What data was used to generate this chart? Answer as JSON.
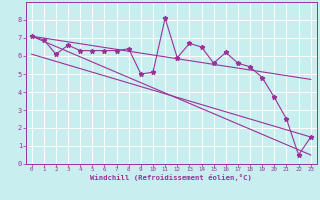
{
  "title": "",
  "xlabel": "Windchill (Refroidissement éolien,°C)",
  "ylabel": "",
  "xlim": [
    -0.5,
    23.5
  ],
  "ylim": [
    0,
    9
  ],
  "xticks": [
    0,
    1,
    2,
    3,
    4,
    5,
    6,
    7,
    8,
    9,
    10,
    11,
    12,
    13,
    14,
    15,
    16,
    17,
    18,
    19,
    20,
    21,
    22,
    23
  ],
  "yticks": [
    0,
    1,
    2,
    3,
    4,
    5,
    6,
    7,
    8
  ],
  "background_color": "#c8eef0",
  "line_color": "#993399",
  "grid_color": "#ffffff",
  "series1": {
    "x": [
      0,
      1,
      2,
      3,
      4,
      5,
      6,
      7,
      8,
      9,
      10,
      11,
      12,
      13,
      14,
      15,
      16,
      17,
      18,
      19,
      20,
      21,
      22,
      23
    ],
    "y": [
      7.1,
      6.9,
      6.1,
      6.6,
      6.3,
      6.3,
      6.3,
      6.3,
      6.4,
      5.0,
      5.1,
      8.1,
      5.9,
      6.7,
      6.5,
      5.6,
      6.2,
      5.6,
      5.4,
      4.8,
      3.7,
      2.5,
      0.5,
      1.5
    ]
  },
  "series2": {
    "x": [
      0,
      23
    ],
    "y": [
      7.1,
      4.7
    ]
  },
  "series3": {
    "x": [
      0,
      23
    ],
    "y": [
      6.1,
      1.5
    ]
  },
  "series4": {
    "x": [
      0,
      23
    ],
    "y": [
      7.1,
      0.5
    ]
  }
}
